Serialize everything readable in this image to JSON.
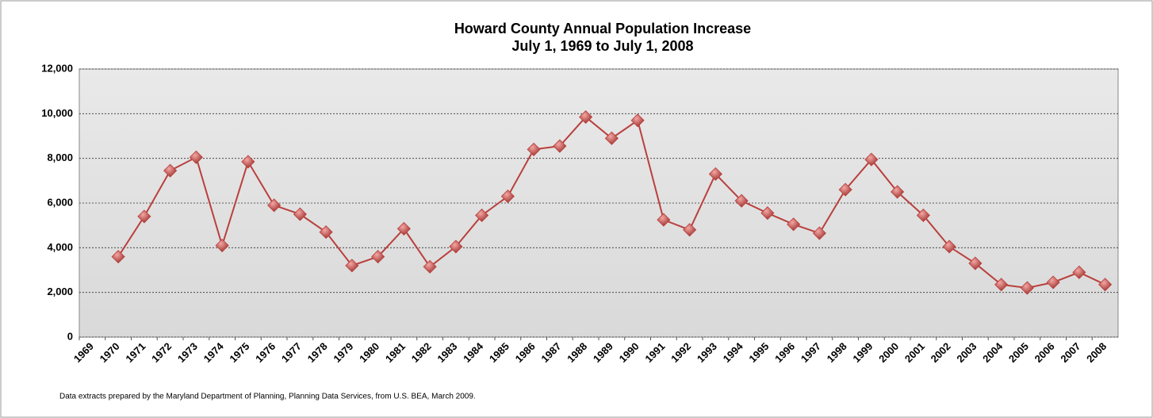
{
  "chart_data": {
    "type": "line",
    "title": "Howard County Annual Population Increase",
    "subtitle": "July 1, 1969 to July 1, 2008",
    "note": "Data extracts prepared by the Maryland Department of Planning, Planning Data Services, from U.S.  BEA,  March 2009.",
    "categories": [
      "1969",
      "1970",
      "1971",
      "1972",
      "1973",
      "1974",
      "1975",
      "1976",
      "1977",
      "1978",
      "1979",
      "1980",
      "1981",
      "1982",
      "1983",
      "1984",
      "1985",
      "1986",
      "1987",
      "1988",
      "1989",
      "1990",
      "1991",
      "1992",
      "1993",
      "1994",
      "1995",
      "1996",
      "1997",
      "1998",
      "1999",
      "2000",
      "2001",
      "2002",
      "2003",
      "2004",
      "2005",
      "2006",
      "2007",
      "2008"
    ],
    "series": [
      {
        "color": "#b9403d",
        "values": [
          null,
          3600,
          5400,
          7450,
          8050,
          4100,
          7850,
          5900,
          5500,
          4700,
          3200,
          3600,
          4850,
          3150,
          4050,
          5450,
          6300,
          8400,
          8550,
          9850,
          8900,
          9700,
          5250,
          4800,
          7300,
          6100,
          5550,
          5050,
          4650,
          6600,
          7950,
          6500,
          5450,
          4050,
          3300,
          2350,
          2200,
          2450,
          2900,
          2350
        ]
      }
    ],
    "ylim": [
      0,
      12000
    ],
    "yticks": [
      0,
      {
        "value": 2000,
        "label": "2,000"
      },
      {
        "value": 4000,
        "label": "4,000"
      },
      {
        "value": 6000,
        "label": "6,000"
      },
      {
        "value": 8000,
        "label": "8,000"
      },
      {
        "value": 10000,
        "label": "10,000"
      },
      {
        "value": 12000,
        "label": "12,000"
      }
    ],
    "grid": true
  }
}
